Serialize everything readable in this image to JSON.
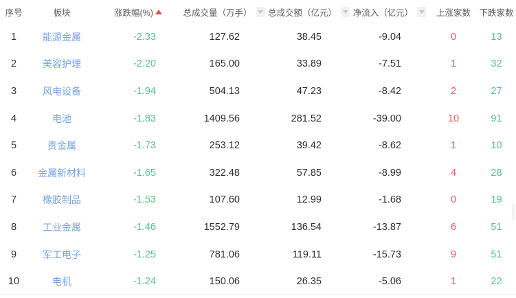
{
  "colors": {
    "sector_link_blue": "#74a3e3",
    "decline_green": "#54c08f",
    "rise_red": "#f0585c",
    "sort_active_red": "#e1544b",
    "sort_inactive_gray": "#c6c6c6",
    "header_text": "#5b5b5b",
    "body_text": "#2e2e2e",
    "divider": "#e4e4e4"
  },
  "table": {
    "columns": [
      {
        "key": "index",
        "label": "序号",
        "sort_icon": null
      },
      {
        "key": "sector",
        "label": "板块",
        "sort_icon": null
      },
      {
        "key": "change",
        "label": "涨跌幅(%)",
        "sort_icon": "sort-up-icon"
      },
      {
        "key": "volume",
        "label": "总成交量（万手）",
        "sort_icon": "sort-down-icon"
      },
      {
        "key": "turnover",
        "label": "总成交额（亿元）",
        "sort_icon": "sort-down-icon"
      },
      {
        "key": "inflow",
        "label": "净流入（亿元）",
        "sort_icon": "sort-down-icon"
      },
      {
        "key": "rise",
        "label": "上涨家数",
        "sort_icon": null
      },
      {
        "key": "fall",
        "label": "下跌家数",
        "sort_icon": null
      }
    ],
    "rows": [
      {
        "index": "1",
        "sector": "能源金属",
        "change": "-2.33",
        "volume": "127.62",
        "turnover": "38.45",
        "inflow": "-9.04",
        "rise": "0",
        "fall": "13"
      },
      {
        "index": "2",
        "sector": "美容护理",
        "change": "-2.20",
        "volume": "165.00",
        "turnover": "33.89",
        "inflow": "-7.51",
        "rise": "1",
        "fall": "32"
      },
      {
        "index": "3",
        "sector": "风电设备",
        "change": "-1.94",
        "volume": "504.13",
        "turnover": "47.23",
        "inflow": "-8.42",
        "rise": "2",
        "fall": "27"
      },
      {
        "index": "4",
        "sector": "电池",
        "change": "-1.83",
        "volume": "1409.56",
        "turnover": "281.52",
        "inflow": "-39.00",
        "rise": "10",
        "fall": "91"
      },
      {
        "index": "5",
        "sector": "贵金属",
        "change": "-1.73",
        "volume": "253.12",
        "turnover": "39.42",
        "inflow": "-8.62",
        "rise": "1",
        "fall": "10"
      },
      {
        "index": "6",
        "sector": "金属新材料",
        "change": "-1.65",
        "volume": "322.48",
        "turnover": "57.85",
        "inflow": "-8.99",
        "rise": "4",
        "fall": "28"
      },
      {
        "index": "7",
        "sector": "橡胶制品",
        "change": "-1.53",
        "volume": "107.60",
        "turnover": "12.99",
        "inflow": "-1.68",
        "rise": "0",
        "fall": "19"
      },
      {
        "index": "8",
        "sector": "工业金属",
        "change": "-1.46",
        "volume": "1552.79",
        "turnover": "136.54",
        "inflow": "-13.87",
        "rise": "6",
        "fall": "51"
      },
      {
        "index": "9",
        "sector": "军工电子",
        "change": "-1.25",
        "volume": "781.06",
        "turnover": "119.11",
        "inflow": "-15.73",
        "rise": "9",
        "fall": "51"
      },
      {
        "index": "10",
        "sector": "电机",
        "change": "-1.24",
        "volume": "150.06",
        "turnover": "26.35",
        "inflow": "-5.06",
        "rise": "1",
        "fall": "22"
      }
    ]
  }
}
